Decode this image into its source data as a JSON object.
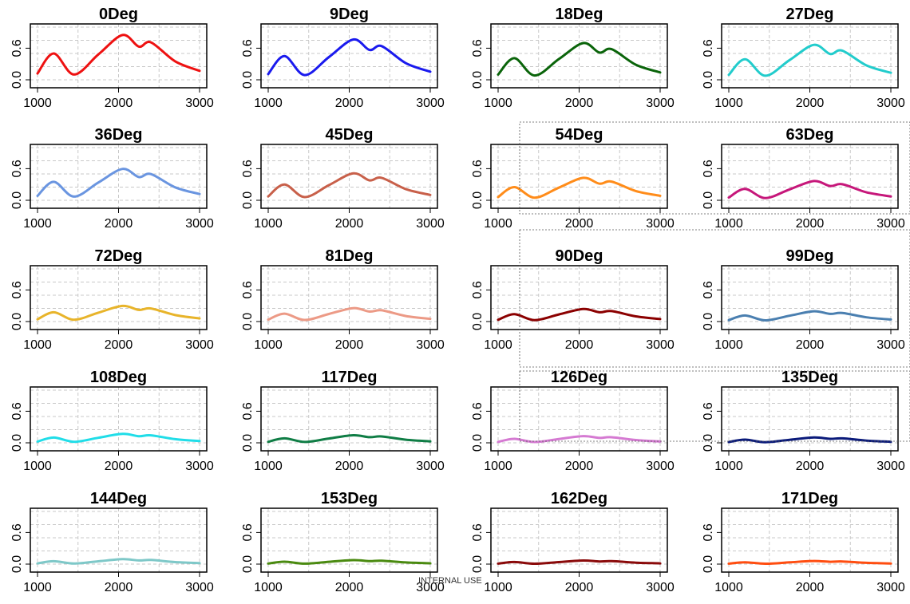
{
  "footer_text": "INTERNAL USE",
  "chart_data": {
    "type": "line",
    "layout": "small-multiples",
    "xlim": [
      1000,
      3000
    ],
    "ylim": [
      0.0,
      1.0
    ],
    "x_ticks": [
      1000,
      2000,
      3000
    ],
    "y_ticks": [
      0.0,
      0.6
    ],
    "y_tick_labels": [
      "0.0",
      "0.6"
    ],
    "grid": true,
    "x": [
      1000,
      1200,
      1450,
      1750,
      2050,
      2250,
      2400,
      2700,
      3000
    ],
    "base_values": [
      0.12,
      0.5,
      0.1,
      0.48,
      0.85,
      0.63,
      0.71,
      0.35,
      0.17
    ],
    "panels": [
      {
        "title": "0Deg",
        "color": "#ee1111",
        "scale": 1.0
      },
      {
        "title": "9Deg",
        "color": "#1a1aee",
        "scale": 0.9
      },
      {
        "title": "18Deg",
        "color": "#0a640a",
        "scale": 0.82
      },
      {
        "title": "27Deg",
        "color": "#22cccc",
        "scale": 0.78
      },
      {
        "title": "36Deg",
        "color": "#6a95e0",
        "scale": 0.7
      },
      {
        "title": "45Deg",
        "color": "#c8604a",
        "scale": 0.6
      },
      {
        "title": "54Deg",
        "color": "#ff8c1a",
        "scale": 0.5
      },
      {
        "title": "63Deg",
        "color": "#c6177a",
        "scale": 0.43
      },
      {
        "title": "72Deg",
        "color": "#e8b42a",
        "scale": 0.35
      },
      {
        "title": "81Deg",
        "color": "#ec9a86",
        "scale": 0.3
      },
      {
        "title": "90Deg",
        "color": "#8b0000",
        "scale": 0.28
      },
      {
        "title": "99Deg",
        "color": "#4a7fb0",
        "scale": 0.23
      },
      {
        "title": "108Deg",
        "color": "#20dde8",
        "scale": 0.2
      },
      {
        "title": "117Deg",
        "color": "#0f7d45",
        "scale": 0.17
      },
      {
        "title": "126Deg",
        "color": "#d57ad2",
        "scale": 0.15
      },
      {
        "title": "135Deg",
        "color": "#0a1a7a",
        "scale": 0.12
      },
      {
        "title": "144Deg",
        "color": "#7ec8c8",
        "scale": 0.11
      },
      {
        "title": "153Deg",
        "color": "#4a8a10",
        "scale": 0.09
      },
      {
        "title": "162Deg",
        "color": "#8a0a0a",
        "scale": 0.08
      },
      {
        "title": "171Deg",
        "color": "#ff4d10",
        "scale": 0.07
      }
    ]
  }
}
